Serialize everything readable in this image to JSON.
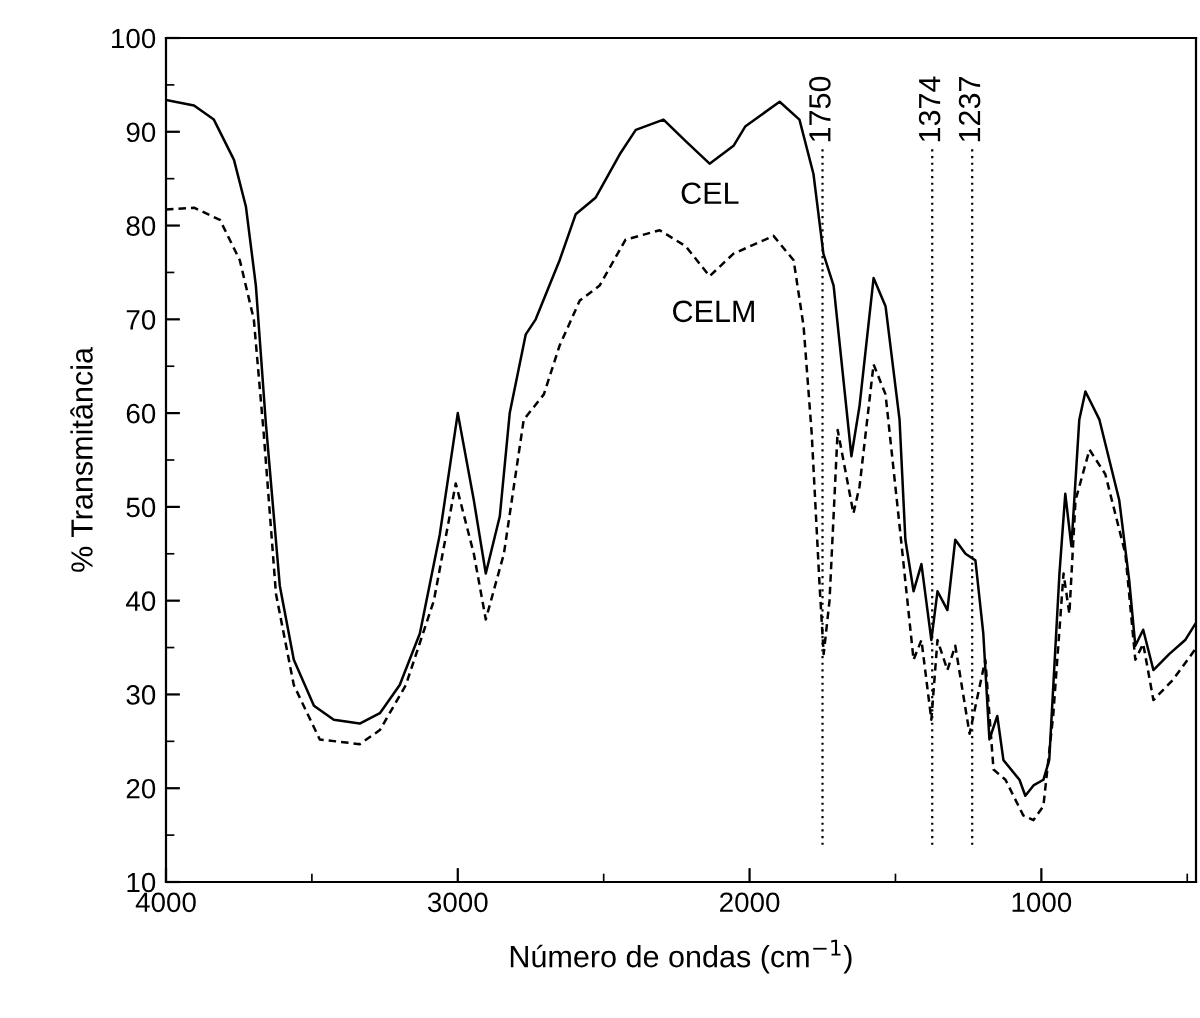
{
  "chart_data": {
    "type": "line",
    "xlabel": "Número de ondas (cm$^{−1}$)",
    "ylabel": "% Transmitância",
    "xlim": [
      4000,
      470
    ],
    "ylim": [
      10,
      100
    ],
    "xticks": [
      4000,
      3000,
      2000,
      1000
    ],
    "yticks": [
      10,
      20,
      30,
      40,
      50,
      60,
      70,
      80,
      90,
      100
    ],
    "grid": false,
    "legend": false,
    "marker": "none",
    "series": [
      {
        "name": "CEL",
        "color": "#000000",
        "line_style": "solid",
        "x": [
          4000,
          3904,
          3836,
          3767,
          3726,
          3692,
          3658,
          3610,
          3562,
          3493,
          3425,
          3336,
          3267,
          3199,
          3130,
          3062,
          3000,
          2945,
          2904,
          2856,
          2822,
          2767,
          2733,
          2651,
          2596,
          2527,
          2445,
          2390,
          2295,
          2219,
          2137,
          2055,
          2014,
          1897,
          1829,
          1781,
          1747,
          1712,
          1651,
          1623,
          1575,
          1534,
          1486,
          1466,
          1438,
          1411,
          1377,
          1356,
          1322,
          1295,
          1260,
          1226,
          1199,
          1178,
          1151,
          1130,
          1075,
          1055,
          1027,
          993,
          973,
          938,
          918,
          897,
          870,
          849,
          801,
          733,
          699,
          678,
          651,
          616,
          562,
          507,
          473
        ],
        "values": [
          93.4,
          92.8,
          91.3,
          87,
          82,
          73.6,
          59,
          41.6,
          33.7,
          28.8,
          27.3,
          26.9,
          28,
          31,
          36.5,
          47,
          60,
          50.7,
          42.9,
          49,
          60,
          68.4,
          70,
          76.3,
          81.2,
          83,
          87.6,
          90.2,
          91.3,
          89,
          86.6,
          88.5,
          90.6,
          93.2,
          91.3,
          85.5,
          77,
          73.6,
          55.4,
          60.8,
          74.4,
          71.4,
          59.3,
          46.5,
          41,
          43.9,
          35.8,
          41,
          39,
          46.5,
          45,
          44.3,
          36.5,
          25.2,
          27.7,
          23,
          20.9,
          19.2,
          20.3,
          20.9,
          23,
          42.9,
          51.4,
          45.8,
          59.3,
          62.3,
          59.3,
          50.7,
          42.2,
          35.2,
          36.9,
          32.6,
          34.3,
          35.8,
          37.5
        ]
      },
      {
        "name": "CELM",
        "color": "#000000",
        "line_style": "dashed",
        "x": [
          4000,
          3904,
          3815,
          3747,
          3699,
          3665,
          3623,
          3562,
          3473,
          3336,
          3267,
          3178,
          3082,
          3007,
          2945,
          2904,
          2842,
          2774,
          2705,
          2651,
          2582,
          2514,
          2425,
          2308,
          2219,
          2137,
          2055,
          1918,
          1849,
          1815,
          1787,
          1760,
          1746,
          1726,
          1698,
          1644,
          1623,
          1575,
          1534,
          1486,
          1438,
          1411,
          1377,
          1356,
          1322,
          1295,
          1246,
          1192,
          1164,
          1123,
          1062,
          1027,
          993,
          959,
          924,
          904,
          883,
          835,
          781,
          712,
          678,
          651,
          616,
          548,
          473
        ],
        "values": [
          81.7,
          81.9,
          80.6,
          76.3,
          70,
          57.8,
          40.7,
          31,
          25.2,
          24.7,
          26.2,
          31,
          40,
          52.5,
          45,
          38,
          45,
          59.3,
          62,
          67.2,
          72,
          73.6,
          78.5,
          79.5,
          77.8,
          74.6,
          77,
          78.9,
          76.3,
          69.3,
          57.8,
          41.6,
          34.3,
          40,
          58.2,
          49.3,
          52.2,
          65.2,
          62,
          48,
          33.7,
          35.8,
          27.3,
          35.8,
          32.6,
          35.2,
          25.8,
          33.7,
          22,
          20.9,
          17.1,
          16.6,
          18.1,
          27.9,
          42.9,
          38.6,
          50.7,
          56.1,
          53.5,
          45,
          33.7,
          35.4,
          29.4,
          31.6,
          34.8
        ]
      }
    ],
    "ref_lines": [
      {
        "axis": "x",
        "value": 1750,
        "label": "1750",
        "line_style": "dotted",
        "color": "#000000"
      },
      {
        "axis": "x",
        "value": 1374,
        "label": "1374",
        "line_style": "dotted",
        "color": "#000000"
      },
      {
        "axis": "x",
        "value": 1237,
        "label": "1237",
        "line_style": "dotted",
        "color": "#000000"
      }
    ]
  }
}
